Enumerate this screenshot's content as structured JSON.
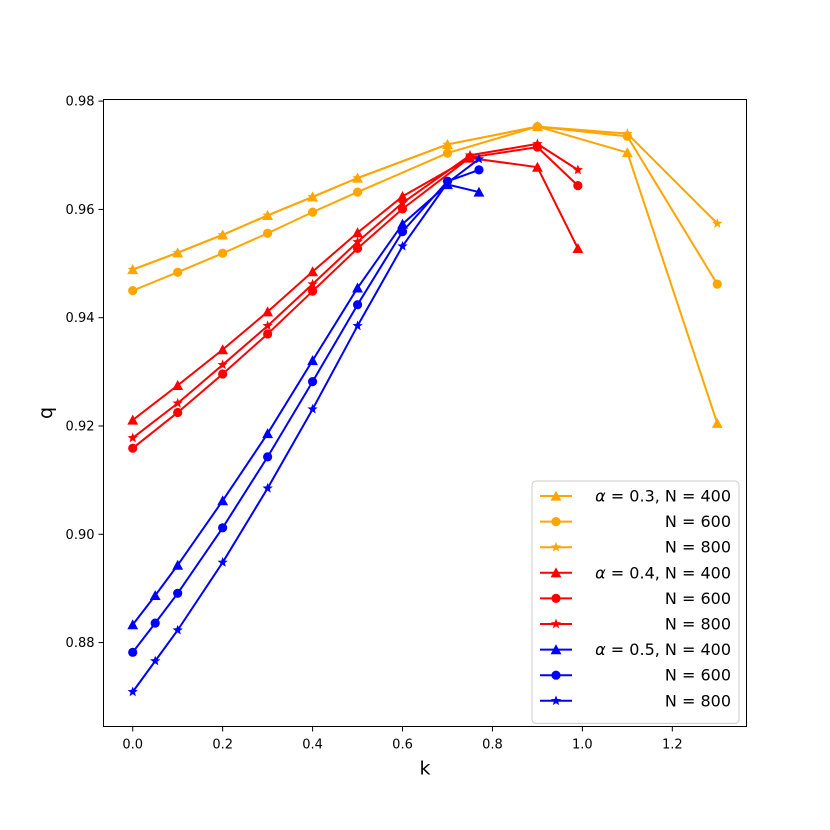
{
  "chart_data": {
    "type": "line",
    "xlabel": "k",
    "ylabel": "q",
    "xlim": [
      -0.065,
      1.365
    ],
    "ylim": [
      0.8645,
      0.9803
    ],
    "xticks": [
      0.0,
      0.2,
      0.4,
      0.6,
      0.8,
      1.0,
      1.2
    ],
    "xtick_labels": [
      "0.0",
      "0.2",
      "0.4",
      "0.6",
      "0.8",
      "1.0",
      "1.2"
    ],
    "yticks": [
      0.88,
      0.9,
      0.92,
      0.94,
      0.96,
      0.98
    ],
    "ytick_labels": [
      "0.88",
      "0.90",
      "0.92",
      "0.94",
      "0.96",
      "0.98"
    ],
    "legend_placement": "lower right",
    "grid": false,
    "series": [
      {
        "name": "α = 0.3, N = 400",
        "legend_label": "$\\alpha = 0.3$, N = 400",
        "color": "#ffa500",
        "marker": "triangle",
        "x": [
          0.0,
          0.1,
          0.2,
          0.3,
          0.4,
          0.5,
          0.7,
          0.9,
          1.1,
          1.3
        ],
        "y": [
          0.9489,
          0.952,
          0.9553,
          0.9589,
          0.9623,
          0.9658,
          0.972,
          0.9753,
          0.9705,
          0.9205
        ]
      },
      {
        "name": "N = 600",
        "legend_label": "N = 600",
        "color": "#ffa500",
        "marker": "circle",
        "x": [
          0.0,
          0.1,
          0.2,
          0.3,
          0.4,
          0.5,
          0.7,
          0.9,
          1.1,
          1.3
        ],
        "y": [
          0.945,
          0.9484,
          0.9519,
          0.9556,
          0.9595,
          0.9632,
          0.9704,
          0.9753,
          0.9735,
          0.9462
        ]
      },
      {
        "name": "N = 800",
        "legend_label": "N = 800",
        "color": "#ffa500",
        "marker": "star",
        "x": [
          0.0,
          0.1,
          0.2,
          0.3,
          0.4,
          0.5,
          0.7,
          0.9,
          1.1,
          1.3
        ],
        "y": [
          0.9489,
          0.952,
          0.9553,
          0.9589,
          0.9623,
          0.9658,
          0.972,
          0.9753,
          0.974,
          0.9574
        ]
      },
      {
        "name": "α = 0.4, N = 400",
        "legend_label": "$\\alpha = 0.4$, N = 400",
        "color": "#ff0000",
        "marker": "triangle",
        "x": [
          0.0,
          0.1,
          0.2,
          0.3,
          0.4,
          0.5,
          0.6,
          0.75,
          0.9,
          0.99
        ],
        "y": [
          0.9211,
          0.9275,
          0.9341,
          0.9411,
          0.9485,
          0.9557,
          0.9624,
          0.9695,
          0.9678,
          0.9528
        ]
      },
      {
        "name": "N = 600",
        "legend_label": "N = 600",
        "color": "#ff0000",
        "marker": "circle",
        "x": [
          0.0,
          0.1,
          0.2,
          0.3,
          0.4,
          0.5,
          0.6,
          0.75,
          0.9,
          0.99
        ],
        "y": [
          0.9159,
          0.9225,
          0.9296,
          0.937,
          0.9449,
          0.9528,
          0.9601,
          0.9696,
          0.9715,
          0.9644
        ]
      },
      {
        "name": "N = 800",
        "legend_label": "N = 800",
        "color": "#ff0000",
        "marker": "star",
        "x": [
          0.0,
          0.1,
          0.2,
          0.3,
          0.4,
          0.5,
          0.6,
          0.75,
          0.9,
          0.99
        ],
        "y": [
          0.9178,
          0.9242,
          0.9313,
          0.9385,
          0.9462,
          0.954,
          0.9612,
          0.97,
          0.9721,
          0.9673
        ]
      },
      {
        "name": "α = 0.5, N = 400",
        "legend_label": "$\\alpha = 0.5$, N = 400",
        "color": "#0000ff",
        "marker": "triangle",
        "x": [
          0.0,
          0.05,
          0.1,
          0.2,
          0.3,
          0.4,
          0.5,
          0.6,
          0.7,
          0.77
        ],
        "y": [
          0.8833,
          0.8887,
          0.8943,
          0.9062,
          0.9186,
          0.9321,
          0.9455,
          0.9573,
          0.9646,
          0.9632
        ]
      },
      {
        "name": "N = 600",
        "legend_label": "N = 600",
        "color": "#0000ff",
        "marker": "circle",
        "x": [
          0.0,
          0.05,
          0.1,
          0.2,
          0.3,
          0.4,
          0.5,
          0.6,
          0.7,
          0.77
        ],
        "y": [
          0.8782,
          0.8836,
          0.8891,
          0.9012,
          0.9143,
          0.9282,
          0.9424,
          0.9559,
          0.9652,
          0.9673
        ]
      },
      {
        "name": "N = 800",
        "legend_label": "N = 800",
        "color": "#0000ff",
        "marker": "star",
        "x": [
          0.0,
          0.05,
          0.1,
          0.2,
          0.3,
          0.4,
          0.5,
          0.6,
          0.7,
          0.77
        ],
        "y": [
          0.8709,
          0.8766,
          0.8823,
          0.8948,
          0.9085,
          0.9231,
          0.9385,
          0.9532,
          0.9649,
          0.9693
        ]
      }
    ]
  }
}
